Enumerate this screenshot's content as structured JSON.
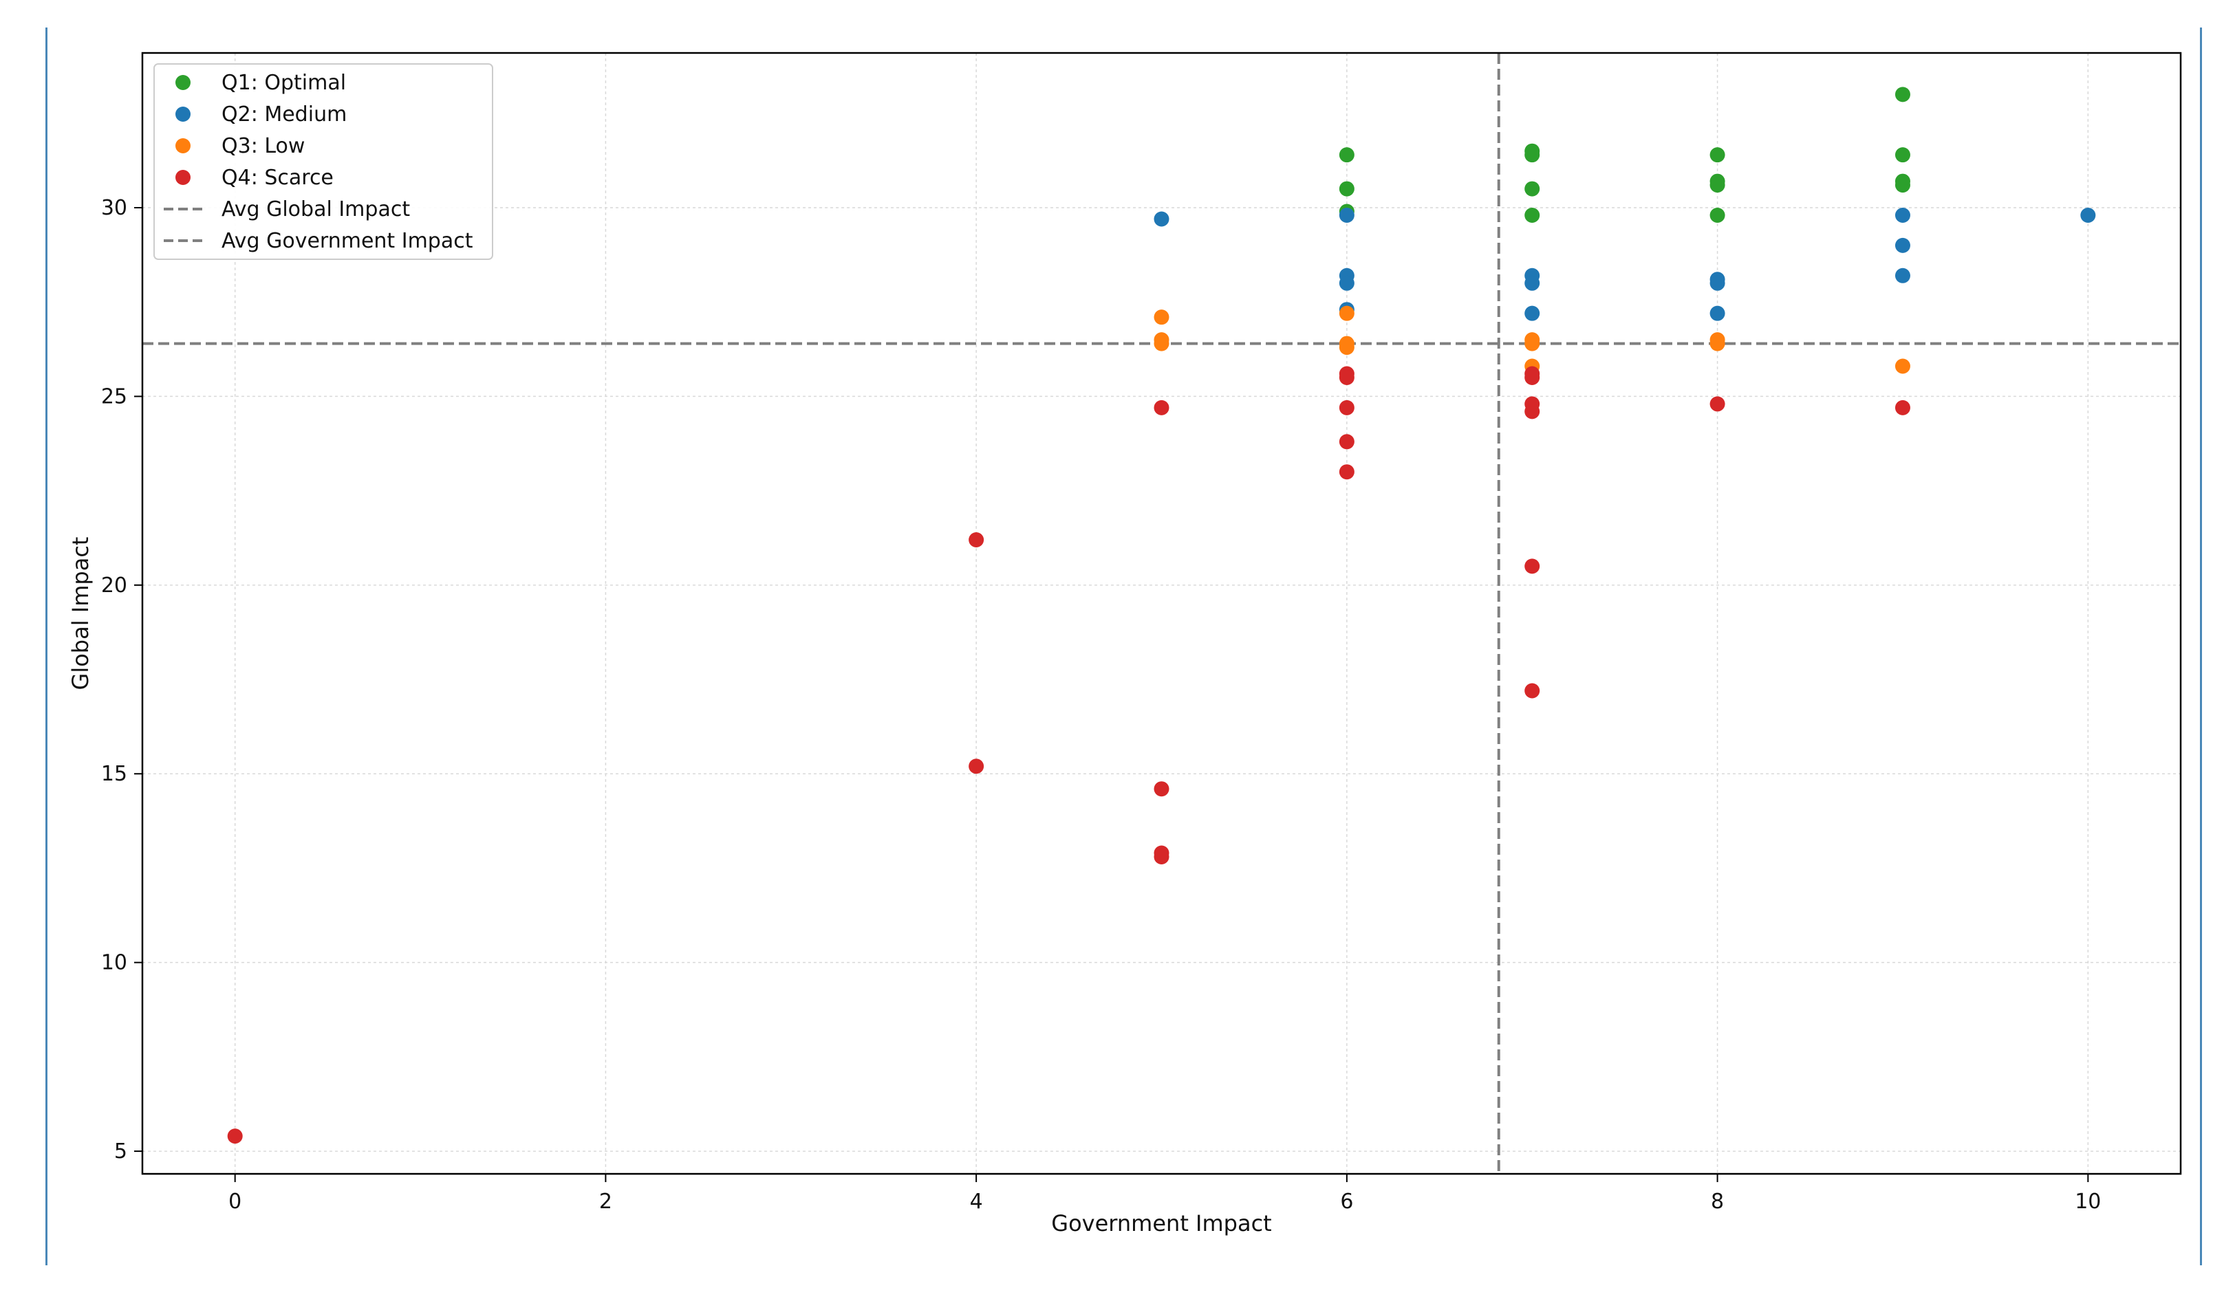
{
  "chart_data": {
    "type": "scatter",
    "xlabel": "Government Impact",
    "ylabel": "Global Impact",
    "xlim": [
      -0.5,
      10.5
    ],
    "ylim": [
      4.4,
      34.1
    ],
    "x_ticks": [
      0,
      2,
      4,
      6,
      8,
      10
    ],
    "y_ticks": [
      5,
      10,
      15,
      20,
      25,
      30
    ],
    "grid": true,
    "legend_position": "top-left",
    "reference_lines": [
      {
        "name": "Avg Global Impact",
        "orientation": "horizontal",
        "value": 26.4,
        "color": "#808080",
        "style": "dashed"
      },
      {
        "name": "Avg Government Impact",
        "orientation": "vertical",
        "value": 6.82,
        "color": "#808080",
        "style": "dashed"
      }
    ],
    "series": [
      {
        "name": "Q1: Optimal",
        "color": "#2ca02c",
        "points": [
          [
            6,
            31.4
          ],
          [
            6,
            30.5
          ],
          [
            6,
            29.9
          ],
          [
            7,
            31.5
          ],
          [
            7,
            31.4
          ],
          [
            7,
            30.5
          ],
          [
            7,
            29.8
          ],
          [
            8,
            31.4
          ],
          [
            8,
            30.7
          ],
          [
            8,
            30.6
          ],
          [
            8,
            29.8
          ],
          [
            9,
            33.0
          ],
          [
            9,
            31.4
          ],
          [
            9,
            30.7
          ],
          [
            9,
            30.6
          ]
        ]
      },
      {
        "name": "Q2: Medium",
        "color": "#1f77b4",
        "points": [
          [
            5,
            29.7
          ],
          [
            6,
            29.8
          ],
          [
            6,
            28.2
          ],
          [
            6,
            28.0
          ],
          [
            6,
            27.3
          ],
          [
            7,
            28.2
          ],
          [
            7,
            28.0
          ],
          [
            7,
            27.2
          ],
          [
            8,
            28.1
          ],
          [
            8,
            28.0
          ],
          [
            8,
            27.2
          ],
          [
            9,
            29.8
          ],
          [
            9,
            29.0
          ],
          [
            9,
            28.2
          ],
          [
            10,
            29.8
          ]
        ]
      },
      {
        "name": "Q3: Low",
        "color": "#ff7f0e",
        "points": [
          [
            5,
            27.1
          ],
          [
            5,
            26.5
          ],
          [
            5,
            26.4
          ],
          [
            6,
            27.2
          ],
          [
            6,
            26.4
          ],
          [
            6,
            26.3
          ],
          [
            7,
            26.5
          ],
          [
            7,
            26.4
          ],
          [
            7,
            25.8
          ],
          [
            8,
            26.5
          ],
          [
            8,
            26.4
          ],
          [
            9,
            25.8
          ]
        ]
      },
      {
        "name": "Q4: Scarce",
        "color": "#d62728",
        "points": [
          [
            0,
            5.4
          ],
          [
            4,
            21.2
          ],
          [
            4,
            15.2
          ],
          [
            5,
            24.7
          ],
          [
            5,
            14.6
          ],
          [
            5,
            12.9
          ],
          [
            5,
            12.8
          ],
          [
            6,
            25.6
          ],
          [
            6,
            25.5
          ],
          [
            6,
            24.7
          ],
          [
            6,
            23.8
          ],
          [
            6,
            23.0
          ],
          [
            7,
            25.6
          ],
          [
            7,
            25.5
          ],
          [
            7,
            24.8
          ],
          [
            7,
            24.6
          ],
          [
            7,
            20.5
          ],
          [
            7,
            17.2
          ],
          [
            8,
            24.8
          ],
          [
            9,
            24.7
          ]
        ]
      }
    ],
    "legend": [
      {
        "label": "Q1: Optimal",
        "kind": "marker",
        "color": "#2ca02c"
      },
      {
        "label": "Q2: Medium",
        "kind": "marker",
        "color": "#1f77b4"
      },
      {
        "label": "Q3: Low",
        "kind": "marker",
        "color": "#ff7f0e"
      },
      {
        "label": "Q4: Scarce",
        "kind": "marker",
        "color": "#d62728"
      },
      {
        "label": "Avg Global Impact",
        "kind": "line",
        "color": "#808080"
      },
      {
        "label": "Avg Government Impact",
        "kind": "line",
        "color": "#808080"
      }
    ]
  }
}
